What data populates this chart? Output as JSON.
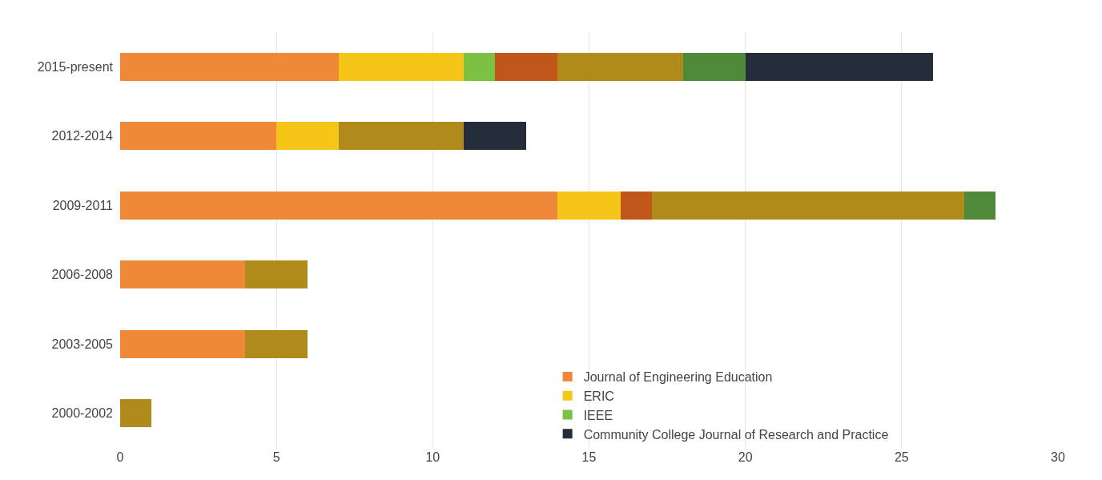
{
  "chart_data": {
    "type": "bar",
    "orientation": "horizontal",
    "stacked": true,
    "categories": [
      "2015-present",
      "2012-2014",
      "2009-2011",
      "2006-2008",
      "2003-2005",
      "2000-2002"
    ],
    "series": [
      {
        "name": "Journal of Engineering Education",
        "color": "#f0883a",
        "values": [
          7,
          5,
          14,
          4,
          4,
          0
        ]
      },
      {
        "name": "ERIC",
        "color": "#f5c518",
        "values": [
          4,
          2,
          2,
          0,
          0,
          0
        ]
      },
      {
        "name": "IEEE",
        "color": "#7dc142",
        "values": [
          1,
          0,
          0,
          0,
          0,
          0
        ]
      },
      {
        "color": "#c0561a",
        "values": [
          2,
          0,
          1,
          0,
          0,
          0
        ]
      },
      {
        "color": "#b08a1a",
        "values": [
          4,
          4,
          10,
          2,
          2,
          1
        ]
      },
      {
        "color": "#4e8a3a",
        "values": [
          2,
          0,
          1,
          0,
          0,
          0
        ]
      },
      {
        "name": "Community College Journal of Research and Practice",
        "color": "#252d3a",
        "values": [
          6,
          2,
          0,
          0,
          0,
          0
        ]
      }
    ],
    "xlim": [
      0,
      30
    ],
    "xticks": [
      0,
      5,
      10,
      15,
      20,
      25,
      30
    ],
    "grid": "x",
    "legend": "bottom"
  }
}
